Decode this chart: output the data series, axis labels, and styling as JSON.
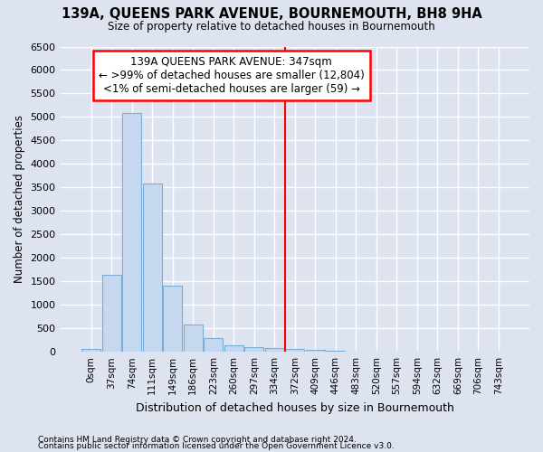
{
  "title": "139A, QUEENS PARK AVENUE, BOURNEMOUTH, BH8 9HA",
  "subtitle": "Size of property relative to detached houses in Bournemouth",
  "xlabel": "Distribution of detached houses by size in Bournemouth",
  "ylabel": "Number of detached properties",
  "footer_line1": "Contains HM Land Registry data © Crown copyright and database right 2024.",
  "footer_line2": "Contains public sector information licensed under the Open Government Licence v3.0.",
  "bar_labels": [
    "0sqm",
    "37sqm",
    "74sqm",
    "111sqm",
    "149sqm",
    "186sqm",
    "223sqm",
    "260sqm",
    "297sqm",
    "334sqm",
    "372sqm",
    "409sqm",
    "446sqm",
    "483sqm",
    "520sqm",
    "557sqm",
    "594sqm",
    "632sqm",
    "669sqm",
    "706sqm",
    "743sqm"
  ],
  "bar_values": [
    70,
    1640,
    5080,
    3580,
    1400,
    590,
    290,
    140,
    100,
    75,
    60,
    45,
    30,
    5,
    5,
    3,
    2,
    2,
    1,
    1,
    0
  ],
  "bar_color": "#c5d8f0",
  "bar_edge_color": "#7aadd4",
  "background_color": "#dde3ef",
  "plot_bg_color": "#dde3ef",
  "grid_color": "#ffffff",
  "vline_x": 9.5,
  "vline_color": "red",
  "annotation_text": "139A QUEENS PARK AVENUE: 347sqm\n← >99% of detached houses are smaller (12,804)\n<1% of semi-detached houses are larger (59) →",
  "ylim": [
    0,
    6500
  ],
  "yticks": [
    0,
    500,
    1000,
    1500,
    2000,
    2500,
    3000,
    3500,
    4000,
    4500,
    5000,
    5500,
    6000,
    6500
  ]
}
